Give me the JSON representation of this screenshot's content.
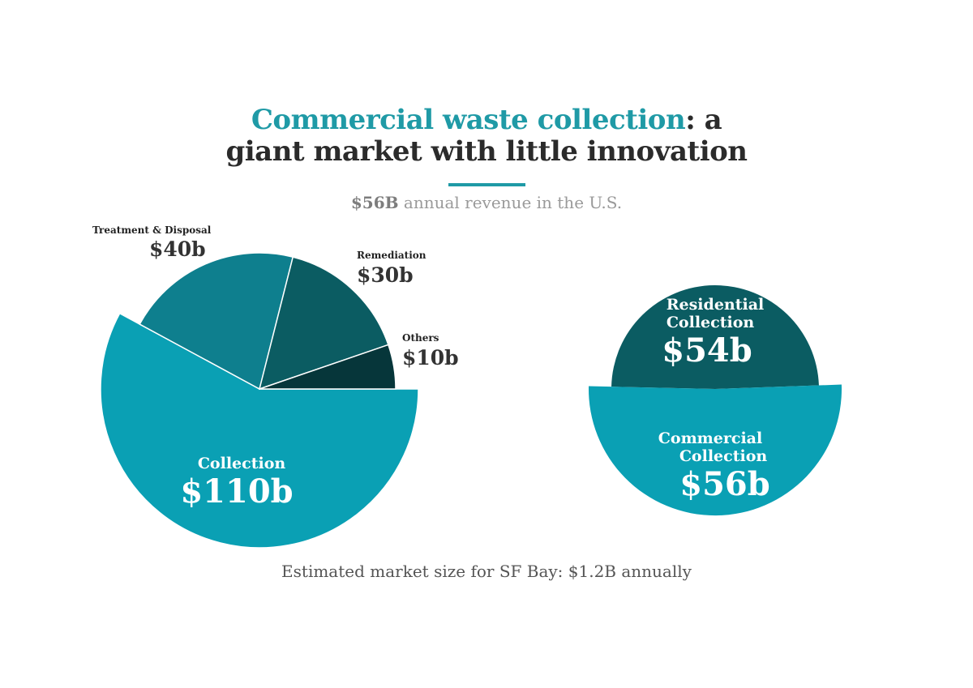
{
  "title": {
    "line1_accent": "Commercial waste collection",
    "line1_rest": ": a",
    "line2": "giant market with little innovation"
  },
  "subtitle": {
    "strong": "$56B",
    "rest": " annual revenue in the U.S."
  },
  "footnote": "Estimated market size for SF Bay: $1.2B annually",
  "colors": {
    "accent": "#1f9aa6",
    "collection": "#0aa0b4",
    "treatment": "#0e7f8e",
    "remediation": "#0b5c62",
    "others": "#06363a",
    "residential": "#0b5c62",
    "commercial": "#0aa0b4"
  },
  "chart_data": [
    {
      "type": "pie",
      "slices": [
        {
          "label": "Collection",
          "value": 110,
          "value_label": "$110b"
        },
        {
          "label": "Treatment & Disposal",
          "value": 40,
          "value_label": "$40b"
        },
        {
          "label": "Remediation",
          "value": 30,
          "value_label": "$30b"
        },
        {
          "label": "Others",
          "value": 10,
          "value_label": "$10b"
        }
      ],
      "exploded": "Collection"
    },
    {
      "type": "pie",
      "slices": [
        {
          "label_lines": [
            "Residential",
            "Collection"
          ],
          "value": 54,
          "value_label": "$54b"
        },
        {
          "label_lines": [
            "Commercial",
            "Collection"
          ],
          "value": 56,
          "value_label": "$56b"
        }
      ],
      "exploded": "Commercial"
    }
  ]
}
